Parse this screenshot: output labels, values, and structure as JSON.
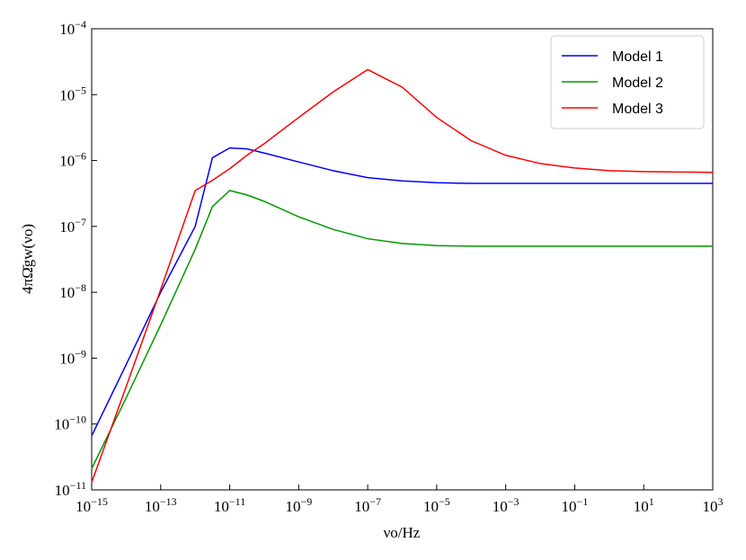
{
  "chart_data": {
    "type": "line",
    "x_label": "νo/Hz",
    "y_label": "4πΩ̄gw(νo)",
    "xscale": "log",
    "yscale": "log",
    "legend": "upper right",
    "x": [
      1e-15,
      1e-14,
      1e-13,
      1e-12,
      3.16e-12,
      1e-11,
      3.16e-11,
      1e-10,
      1e-09,
      1e-08,
      1e-07,
      1e-06,
      1e-05,
      0.0001,
      0.001,
      0.01,
      0.1,
      1,
      10,
      100,
      1000
    ],
    "series": [
      {
        "name": "Model 1",
        "color": "#0000ff",
        "values": [
          6.6e-11,
          8e-10,
          1e-08,
          1e-07,
          1.1e-06,
          1.55e-06,
          1.5e-06,
          1.3e-06,
          9.5e-07,
          7e-07,
          5.5e-07,
          4.9e-07,
          4.6e-07,
          4.5e-07,
          4.5e-07,
          4.5e-07,
          4.5e-07,
          4.5e-07,
          4.5e-07,
          4.5e-07,
          4.5e-07
        ]
      },
      {
        "name": "Model 2",
        "color": "#009900",
        "values": [
          2.1e-11,
          2.5e-10,
          3.2e-09,
          4.5e-08,
          2e-07,
          3.5e-07,
          3e-07,
          2.4e-07,
          1.4e-07,
          9e-08,
          6.5e-08,
          5.5e-08,
          5.1e-08,
          5e-08,
          5e-08,
          5e-08,
          5e-08,
          5e-08,
          5e-08,
          5e-08,
          5e-08
        ]
      },
      {
        "name": "Model 3",
        "color": "#ff0000",
        "values": [
          1.3e-11,
          3.7e-10,
          1.1e-08,
          3.5e-07,
          5e-07,
          7.5e-07,
          1.2e-06,
          1.8e-06,
          4.5e-06,
          1.1e-05,
          2.4e-05,
          1.3e-05,
          4.5e-06,
          2e-06,
          1.2e-06,
          9e-07,
          7.7e-07,
          7e-07,
          6.8e-07,
          6.7e-07,
          6.6e-07
        ]
      }
    ],
    "xlim": [
      1e-15,
      1000
    ],
    "ylim": [
      1e-11,
      0.0001
    ],
    "xticks": [
      {
        "value": 1e-15,
        "label": "10^−15"
      },
      {
        "value": 1e-13,
        "label": "10^−13"
      },
      {
        "value": 1e-11,
        "label": "10^−11"
      },
      {
        "value": 1e-09,
        "label": "10^−9"
      },
      {
        "value": 1e-07,
        "label": "10^−7"
      },
      {
        "value": 1e-05,
        "label": "10^−5"
      },
      {
        "value": 0.001,
        "label": "10^−3"
      },
      {
        "value": 0.1,
        "label": "10^−1"
      },
      {
        "value": 10,
        "label": "10^1"
      },
      {
        "value": 1000,
        "label": "10^3"
      }
    ],
    "yticks": [
      {
        "value": 1e-11,
        "label": "10^−11"
      },
      {
        "value": 1e-10,
        "label": "10^−10"
      },
      {
        "value": 1e-09,
        "label": "10^−9"
      },
      {
        "value": 1e-08,
        "label": "10^−8"
      },
      {
        "value": 1e-07,
        "label": "10^−7"
      },
      {
        "value": 1e-06,
        "label": "10^−6"
      },
      {
        "value": 1e-05,
        "label": "10^−5"
      },
      {
        "value": 0.0001,
        "label": "10^−4"
      }
    ]
  }
}
